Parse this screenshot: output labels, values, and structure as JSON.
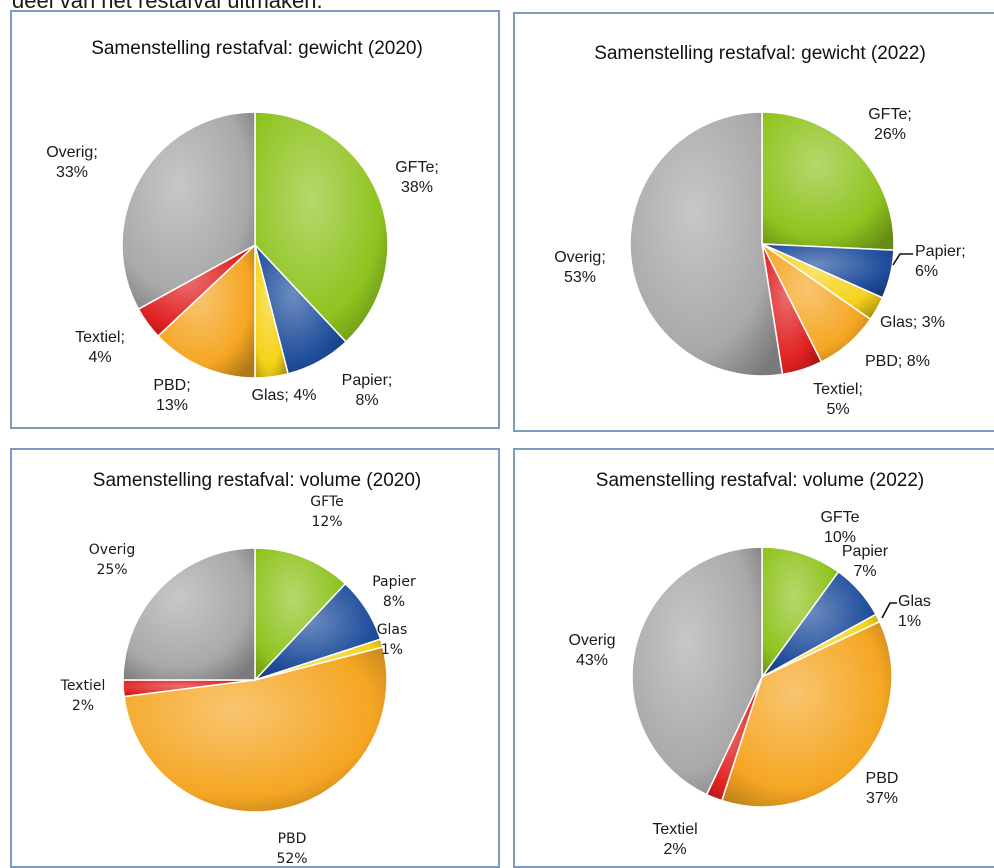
{
  "header": {
    "caption": "deel van het restafval uitmaken."
  },
  "colors": {
    "GFTe": "#8fc31f",
    "Papier": "#1f4e9c",
    "Glas": "#f5d21a",
    "PBD": "#f5a623",
    "Textiel": "#e02020",
    "Overig": "#a9a9a9"
  },
  "chart_data": [
    {
      "type": "pie",
      "title": "Samenstelling restafval: gewicht (2020)",
      "categories": [
        "GFTe",
        "Papier",
        "Glas",
        "PBD",
        "Textiel",
        "Overig"
      ],
      "values": [
        38,
        8,
        4,
        13,
        4,
        33
      ],
      "labels": [
        [
          "GFTe;",
          "38%"
        ],
        [
          "Papier;",
          "8%"
        ],
        [
          "Glas; 4%"
        ],
        [
          "PBD;",
          "13%"
        ],
        [
          "Textiel;",
          "4%"
        ],
        [
          "Overig;",
          "33%"
        ]
      ]
    },
    {
      "type": "pie",
      "title": "Samenstelling restafval: gewicht (2022)",
      "categories": [
        "GFTe",
        "Papier",
        "Glas",
        "PBD",
        "Textiel",
        "Overig"
      ],
      "values": [
        26,
        6,
        3,
        8,
        5,
        53
      ],
      "labels": [
        [
          "GFTe;",
          "26%"
        ],
        [
          "Papier;",
          "6%"
        ],
        [
          "Glas; 3%"
        ],
        [
          "PBD; 8%"
        ],
        [
          "Textiel;",
          "5%"
        ],
        [
          "Overig;",
          "53%"
        ]
      ]
    },
    {
      "type": "pie",
      "title": "Samenstelling restafval: volume (2020)",
      "categories": [
        "GFTe",
        "Papier",
        "Glas",
        "PBD",
        "Textiel",
        "Overig"
      ],
      "values": [
        12,
        8,
        1,
        52,
        2,
        25
      ],
      "labels": [
        [
          "GFTe",
          "12%"
        ],
        [
          "Papier",
          "8%"
        ],
        [
          "Glas",
          "1%"
        ],
        [
          "PBD",
          "52%"
        ],
        [
          "Textiel",
          "2%"
        ],
        [
          "Overig",
          "25%"
        ]
      ]
    },
    {
      "type": "pie",
      "title": "Samenstelling restafval: volume (2022)",
      "categories": [
        "GFTe",
        "Papier",
        "Glas",
        "PBD",
        "Textiel",
        "Overig"
      ],
      "values": [
        10,
        7,
        1,
        37,
        2,
        43
      ],
      "labels": [
        [
          "GFTe",
          "10%"
        ],
        [
          "Papier",
          "7%"
        ],
        [
          "Glas",
          "1%"
        ],
        [
          "PBD",
          "37%"
        ],
        [
          "Textiel",
          "2%"
        ],
        [
          "Overig",
          "43%"
        ]
      ]
    }
  ]
}
